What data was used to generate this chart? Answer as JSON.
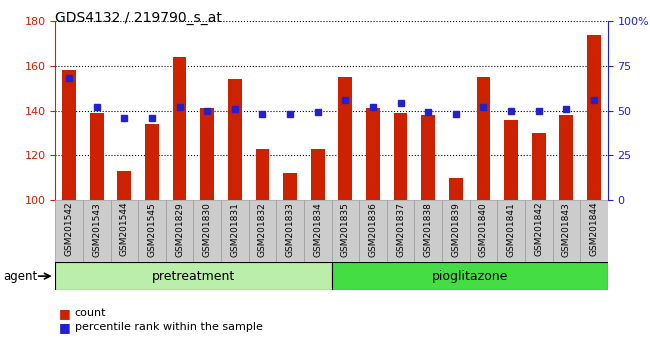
{
  "title": "GDS4132 / 219790_s_at",
  "samples": [
    "GSM201542",
    "GSM201543",
    "GSM201544",
    "GSM201545",
    "GSM201829",
    "GSM201830",
    "GSM201831",
    "GSM201832",
    "GSM201833",
    "GSM201834",
    "GSM201835",
    "GSM201836",
    "GSM201837",
    "GSM201838",
    "GSM201839",
    "GSM201840",
    "GSM201841",
    "GSM201842",
    "GSM201843",
    "GSM201844"
  ],
  "counts": [
    158,
    139,
    113,
    134,
    164,
    141,
    154,
    123,
    112,
    123,
    155,
    141,
    139,
    138,
    110,
    155,
    136,
    130,
    138,
    174
  ],
  "percentiles": [
    68,
    52,
    46,
    46,
    52,
    50,
    51,
    48,
    48,
    49,
    56,
    52,
    54,
    49,
    48,
    52,
    50,
    50,
    51,
    56
  ],
  "pretreatment_count": 10,
  "pioglitazone_count": 10,
  "group_labels": [
    "pretreatment",
    "pioglitazone"
  ],
  "ylim_left": [
    100,
    180
  ],
  "ylim_right": [
    0,
    100
  ],
  "yticks_left": [
    100,
    120,
    140,
    160,
    180
  ],
  "yticks_right": [
    0,
    25,
    50,
    75,
    100
  ],
  "bar_color": "#cc2200",
  "dot_color": "#2222cc",
  "bar_width": 0.5,
  "background_color": "#ffffff",
  "tick_label_color_left": "#cc2200",
  "tick_label_color_right": "#2222cc",
  "pretreat_color": "#bbeeaa",
  "pioglitazone_color": "#44dd44",
  "agent_label": "agent",
  "legend_count_label": "count",
  "legend_percentile_label": "percentile rank within the sample",
  "xtick_bg_color": "#cccccc",
  "xtick_border_color": "#999999"
}
